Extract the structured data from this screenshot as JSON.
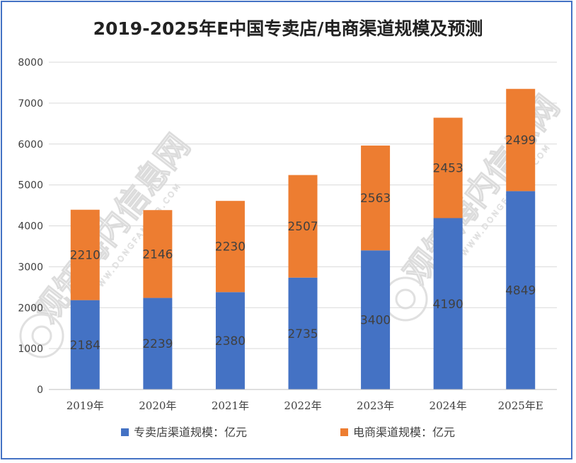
{
  "chart_data": {
    "type": "bar",
    "stacked": true,
    "title": "2019-2025年E中国专卖店/电商渠道规模及预测",
    "categories": [
      "2019年",
      "2020年",
      "2021年",
      "2022年",
      "2023年",
      "2024年",
      "2025年E"
    ],
    "series": [
      {
        "name": "专卖店渠道规模：亿元",
        "color": "#4472c4",
        "values": [
          2184,
          2239,
          2380,
          2735,
          3400,
          4190,
          4849
        ]
      },
      {
        "name": "电商渠道规模：亿元",
        "color": "#ed7d31",
        "values": [
          2210,
          2146,
          2230,
          2507,
          2563,
          2453,
          2499
        ]
      }
    ],
    "ylim": [
      0,
      8000
    ],
    "yticks": [
      0,
      1000,
      2000,
      3000,
      4000,
      5000,
      6000,
      7000,
      8000
    ],
    "xlabel": "",
    "ylabel": "",
    "grid": true,
    "legend": "bottom",
    "watermark": {
      "text": "观知海内信息网",
      "domain": "WWW.DONGFANGQB.COM"
    }
  }
}
